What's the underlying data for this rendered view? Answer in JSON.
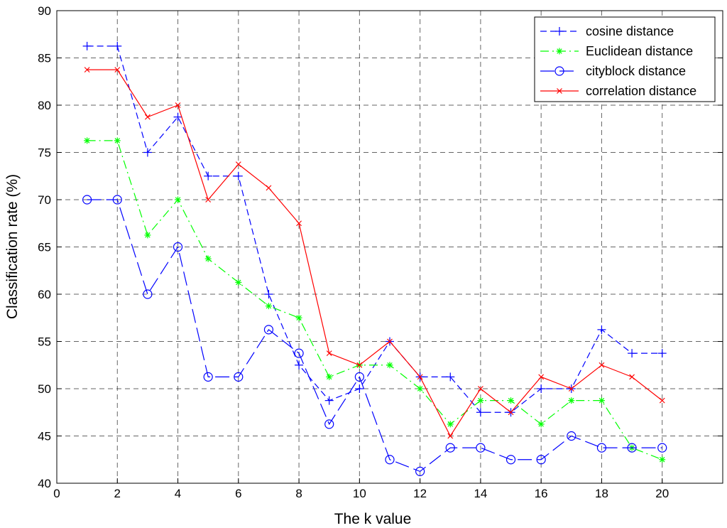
{
  "chart_data": {
    "type": "line",
    "title": "",
    "xlabel": "The k value",
    "ylabel": "Classification rate (%)",
    "xlim": [
      0,
      22
    ],
    "ylim": [
      40,
      90
    ],
    "xticks": [
      0,
      2,
      4,
      6,
      8,
      10,
      12,
      14,
      16,
      18,
      20
    ],
    "yticks": [
      40,
      45,
      50,
      55,
      60,
      65,
      70,
      75,
      80,
      85,
      90
    ],
    "grid": true,
    "legend_position": "top-right",
    "x": [
      1,
      2,
      3,
      4,
      5,
      6,
      7,
      8,
      9,
      10,
      11,
      12,
      13,
      14,
      15,
      16,
      17,
      18,
      19,
      20
    ],
    "series": [
      {
        "name": "cosine distance",
        "color": "#0000ff",
        "line_style": "dashed",
        "marker": "plus",
        "values": [
          86.25,
          86.25,
          75,
          78.75,
          72.5,
          72.5,
          60,
          52.5,
          48.75,
          50,
          55,
          51.25,
          51.25,
          47.5,
          47.5,
          50,
          50,
          56.25,
          53.75,
          53.75
        ]
      },
      {
        "name": "Euclidean distance",
        "color": "#00ff00",
        "line_style": "dashdot",
        "marker": "star",
        "values": [
          76.25,
          76.25,
          66.25,
          70,
          63.75,
          61.25,
          58.75,
          57.5,
          51.25,
          52.5,
          52.5,
          50,
          46.25,
          48.75,
          48.75,
          46.25,
          48.75,
          48.75,
          43.75,
          42.5
        ]
      },
      {
        "name": "cityblock distance",
        "color": "#0000ff",
        "line_style": "longdash",
        "marker": "circle",
        "values": [
          70,
          70,
          60,
          65,
          51.25,
          51.25,
          56.25,
          53.75,
          46.25,
          51.25,
          42.5,
          41.25,
          43.75,
          43.75,
          42.5,
          42.5,
          45,
          43.75,
          43.75,
          43.75
        ]
      },
      {
        "name": "correlation distance",
        "color": "#ff0000",
        "line_style": "solid",
        "marker": "x",
        "values": [
          83.75,
          83.75,
          78.75,
          80,
          70,
          73.75,
          71.25,
          67.5,
          53.75,
          52.5,
          55,
          51.25,
          45,
          50,
          47.5,
          51.25,
          50,
          52.5,
          51.25,
          48.75
        ]
      }
    ]
  }
}
